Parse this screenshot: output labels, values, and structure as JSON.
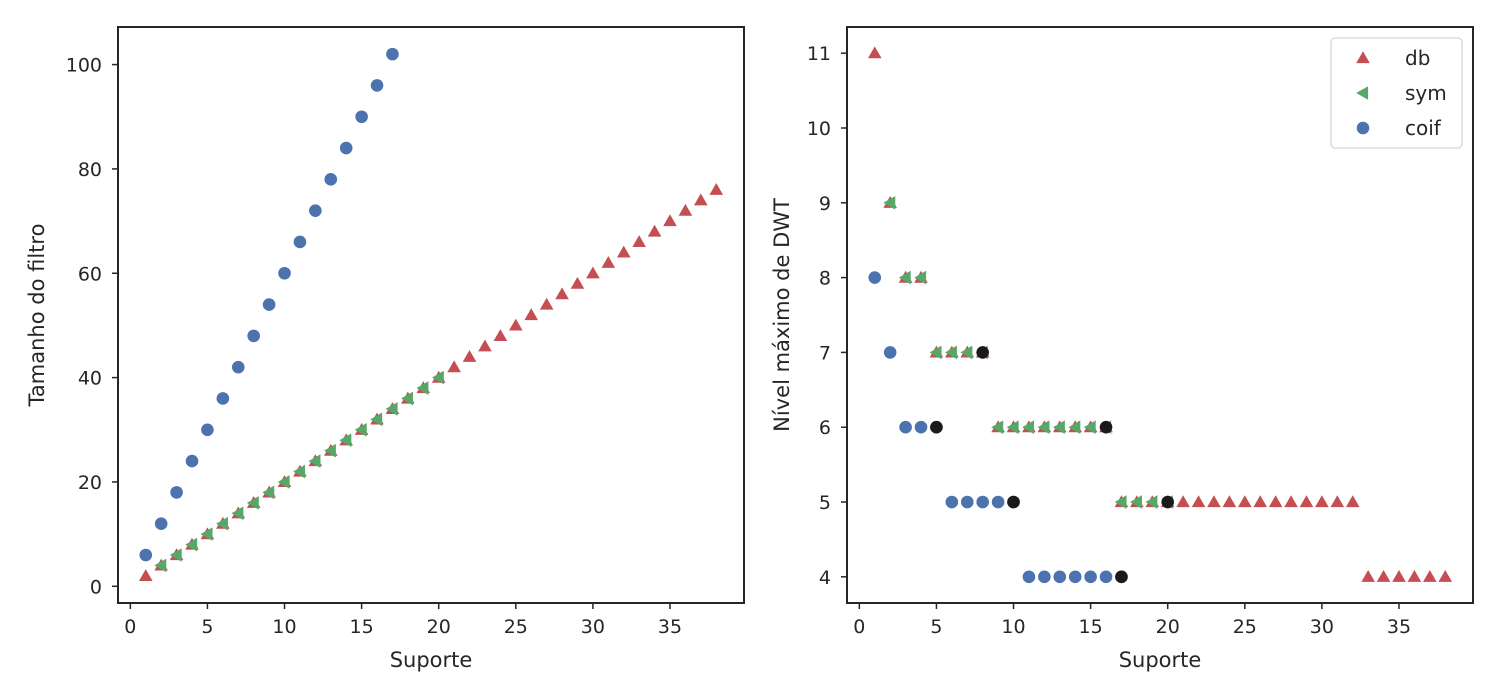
{
  "colors": {
    "db": "#c44e52",
    "sym": "#55a868",
    "coif": "#4c72b0",
    "highlight": "#1a1a1a",
    "axis": "#262626"
  },
  "chart_data": [
    {
      "type": "scatter",
      "title": "",
      "xlabel": "Suporte",
      "ylabel": "Tamanho do filtro",
      "xlim": [
        -0.8,
        39.8
      ],
      "ylim": [
        -3.2,
        107.2
      ],
      "xticks": [
        0,
        5,
        10,
        15,
        20,
        25,
        30,
        35
      ],
      "yticks": [
        0,
        20,
        40,
        60,
        80,
        100
      ],
      "grid": false,
      "legend": null,
      "series": [
        {
          "name": "db",
          "marker": "triangle-up",
          "color": "#c44e52",
          "x": [
            1,
            2,
            3,
            4,
            5,
            6,
            7,
            8,
            9,
            10,
            11,
            12,
            13,
            14,
            15,
            16,
            17,
            18,
            19,
            20,
            21,
            22,
            23,
            24,
            25,
            26,
            27,
            28,
            29,
            30,
            31,
            32,
            33,
            34,
            35,
            36,
            37,
            38
          ],
          "y": [
            2,
            4,
            6,
            8,
            10,
            12,
            14,
            16,
            18,
            20,
            22,
            24,
            26,
            28,
            30,
            32,
            34,
            36,
            38,
            40,
            42,
            44,
            46,
            48,
            50,
            52,
            54,
            56,
            58,
            60,
            62,
            64,
            66,
            68,
            70,
            72,
            74,
            76
          ]
        },
        {
          "name": "sym",
          "marker": "triangle-left",
          "color": "#55a868",
          "x": [
            2,
            3,
            4,
            5,
            6,
            7,
            8,
            9,
            10,
            11,
            12,
            13,
            14,
            15,
            16,
            17,
            18,
            19,
            20
          ],
          "y": [
            4,
            6,
            8,
            10,
            12,
            14,
            16,
            18,
            20,
            22,
            24,
            26,
            28,
            30,
            32,
            34,
            36,
            38,
            40
          ]
        },
        {
          "name": "coif",
          "marker": "circle",
          "color": "#4c72b0",
          "x": [
            1,
            2,
            3,
            4,
            5,
            6,
            7,
            8,
            9,
            10,
            11,
            12,
            13,
            14,
            15,
            16,
            17
          ],
          "y": [
            6,
            12,
            18,
            24,
            30,
            36,
            42,
            48,
            54,
            60,
            66,
            72,
            78,
            84,
            90,
            96,
            102
          ]
        }
      ]
    },
    {
      "type": "scatter",
      "title": "",
      "xlabel": "Suporte",
      "ylabel": "Nível máximo de DWT",
      "xlim": [
        -0.8,
        39.8
      ],
      "ylim": [
        3.65,
        11.35
      ],
      "xticks": [
        0,
        5,
        10,
        15,
        20,
        25,
        30,
        35
      ],
      "yticks": [
        4,
        5,
        6,
        7,
        8,
        9,
        10,
        11
      ],
      "grid": false,
      "legend": "top-right",
      "series": [
        {
          "name": "db",
          "marker": "triangle-up",
          "color": "#c44e52",
          "x": [
            1,
            2,
            3,
            4,
            5,
            6,
            7,
            8,
            9,
            10,
            11,
            12,
            13,
            14,
            15,
            16,
            17,
            18,
            19,
            20,
            21,
            22,
            23,
            24,
            25,
            26,
            27,
            28,
            29,
            30,
            31,
            32,
            33,
            34,
            35,
            36,
            37,
            38
          ],
          "y": [
            11,
            9,
            8,
            8,
            7,
            7,
            7,
            7,
            6,
            6,
            6,
            6,
            6,
            6,
            6,
            6,
            5,
            5,
            5,
            5,
            5,
            5,
            5,
            5,
            5,
            5,
            5,
            5,
            5,
            5,
            5,
            5,
            4,
            4,
            4,
            4,
            4,
            4
          ]
        },
        {
          "name": "sym",
          "marker": "triangle-left",
          "color": "#55a868",
          "x": [
            2,
            3,
            4,
            5,
            6,
            7,
            8,
            9,
            10,
            11,
            12,
            13,
            14,
            15,
            16,
            17,
            18,
            19,
            20
          ],
          "y": [
            9,
            8,
            8,
            7,
            7,
            7,
            7,
            6,
            6,
            6,
            6,
            6,
            6,
            6,
            6,
            5,
            5,
            5,
            5
          ]
        },
        {
          "name": "coif",
          "marker": "circle",
          "color": "#4c72b0",
          "x": [
            1,
            2,
            3,
            4,
            5,
            6,
            7,
            8,
            9,
            10,
            11,
            12,
            13,
            14,
            15,
            16,
            17
          ],
          "y": [
            8,
            7,
            6,
            6,
            6,
            5,
            5,
            5,
            5,
            5,
            4,
            4,
            4,
            4,
            4,
            4,
            4
          ]
        },
        {
          "marker": "circle",
          "color": "#1a1a1a",
          "x": [
            5,
            8,
            10,
            16,
            17,
            20
          ],
          "y": [
            6,
            7,
            5,
            6,
            4,
            5
          ]
        }
      ]
    }
  ]
}
